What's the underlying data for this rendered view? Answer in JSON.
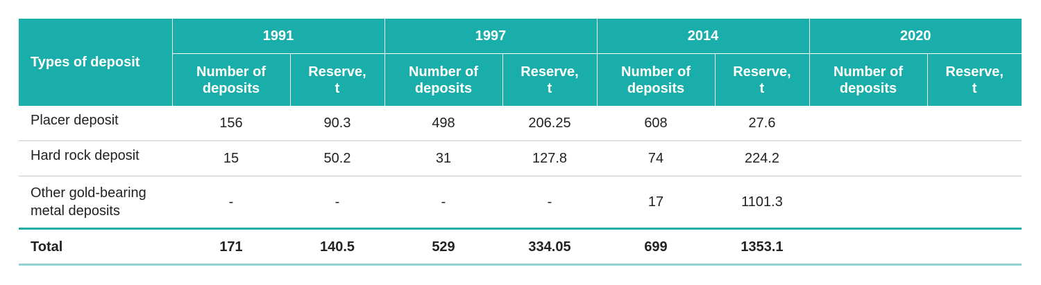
{
  "table": {
    "row_header": "Types of deposit",
    "years": [
      "1991",
      "1997",
      "2014",
      "2020"
    ],
    "sub_headers": {
      "count": [
        "Number of",
        "deposits"
      ],
      "reserve": [
        "Reserve,",
        "t"
      ]
    },
    "rows": [
      {
        "type": [
          "Placer deposit"
        ],
        "values": [
          "156",
          "90.3",
          "498",
          "206.25",
          "608",
          "27.6",
          "",
          ""
        ]
      },
      {
        "type": [
          "Hard rock deposit"
        ],
        "values": [
          "15",
          "50.2",
          "31",
          "127.8",
          "74",
          "224.2",
          "",
          ""
        ]
      },
      {
        "type": [
          "Other gold-bearing",
          "metal deposits"
        ],
        "values": [
          "-",
          "-",
          "-",
          "-",
          "17",
          "1101.3",
          "",
          ""
        ]
      }
    ],
    "total": {
      "label": "Total",
      "values": [
        "171",
        "140.5",
        "529",
        "334.05",
        "699",
        "1353.1",
        "",
        ""
      ]
    }
  },
  "colors": {
    "header_bg": "#1aaeab",
    "header_text": "#ffffff",
    "row_divider": "#c8c8c8",
    "total_rule": "#1aaeab",
    "bottom_rule": "#8fd3d1"
  }
}
